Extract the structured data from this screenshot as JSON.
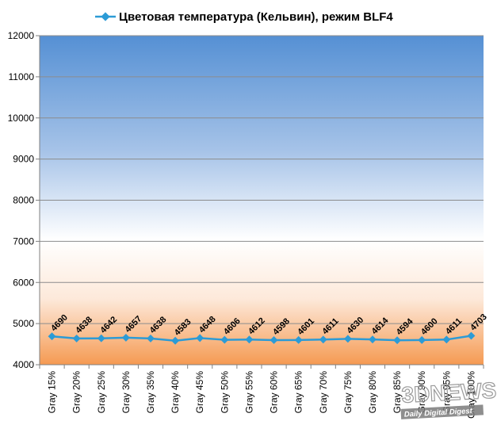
{
  "chart_data": {
    "type": "line",
    "title": "",
    "legend_position": "top",
    "grid": true,
    "ylim": [
      4000,
      12000
    ],
    "y_ticks": [
      "4000",
      "5000",
      "6000",
      "7000",
      "8000",
      "9000",
      "10000",
      "11000",
      "12000"
    ],
    "categories": [
      "Gray 15%",
      "Gray 20%",
      "Gray 25%",
      "Gray 30%",
      "Gray 35%",
      "Gray 40%",
      "Gray 45%",
      "Gray 50%",
      "Gray 55%",
      "Gray 60%",
      "Gray 65%",
      "Gray 70%",
      "Gray 75%",
      "Gray 80%",
      "Gray 85%",
      "Gray 90%",
      "Gray 95%",
      "Gray 100%"
    ],
    "series": [
      {
        "name": "Цветовая температура (Кельвин), режим BLF4",
        "color": "#2c9bd6",
        "values": [
          4690,
          4638,
          4642,
          4657,
          4638,
          4583,
          4648,
          4606,
          4612,
          4598,
          4601,
          4611,
          4630,
          4614,
          4594,
          4600,
          4611,
          4703
        ]
      }
    ]
  },
  "watermark": {
    "main": "3DNEWS",
    "sub": "Daily Digital Digest"
  }
}
